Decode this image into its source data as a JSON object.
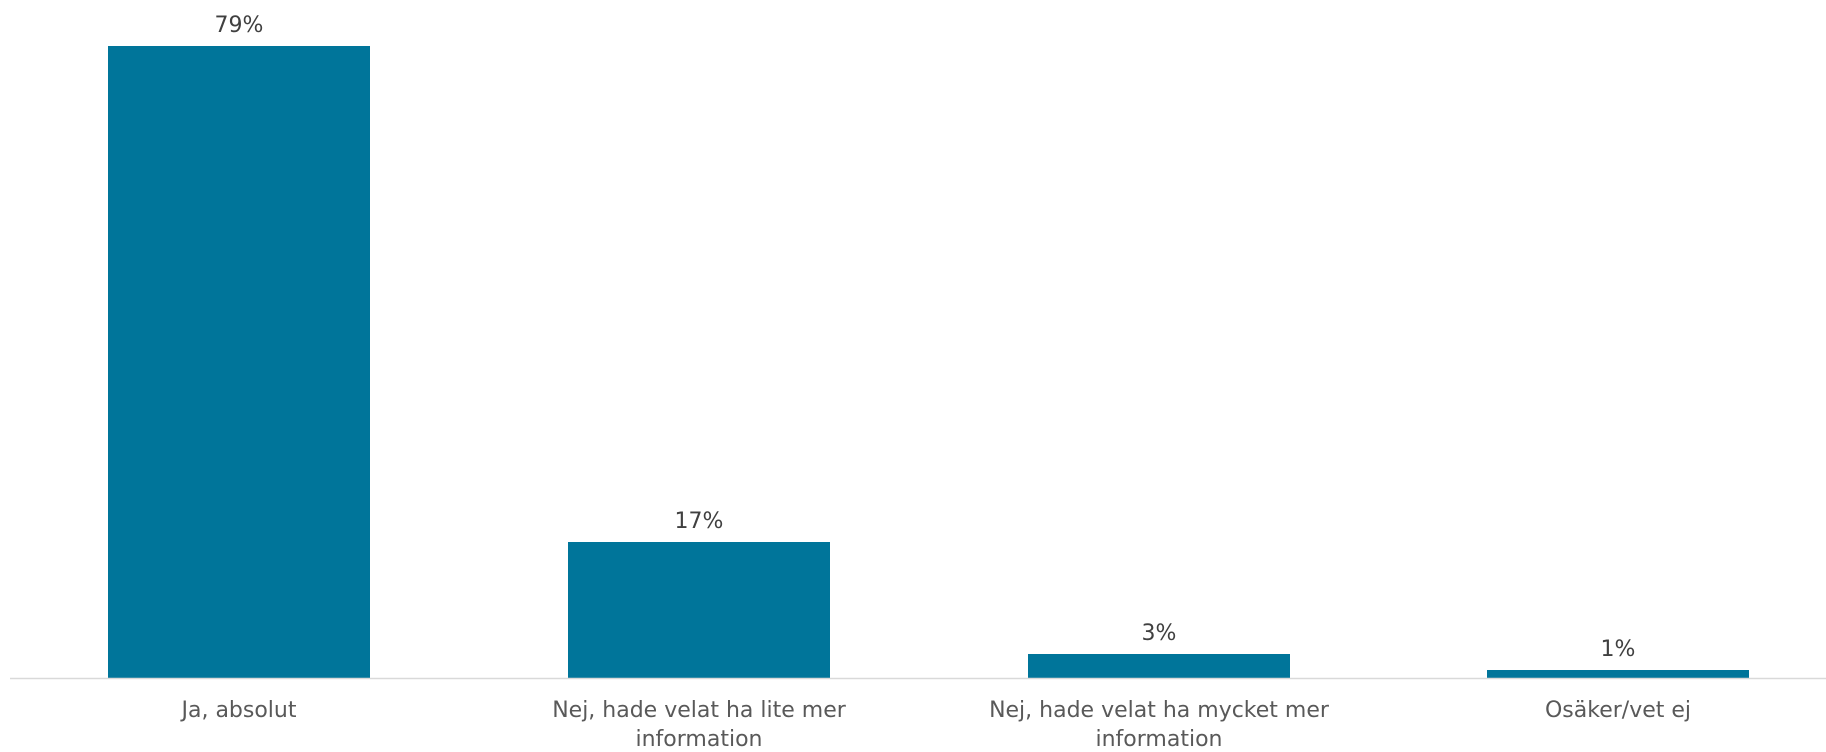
{
  "chart_data": {
    "type": "bar",
    "categories": [
      [
        "Ja, absolut"
      ],
      [
        "Nej, hade velat ha lite mer",
        "information"
      ],
      [
        "Nej, hade velat ha mycket mer",
        "information"
      ],
      [
        "Osäker/vet ej"
      ]
    ],
    "values": [
      79,
      17,
      3,
      1
    ],
    "value_labels": [
      "79%",
      "17%",
      "3%",
      "1%"
    ],
    "bar_color": "#00759A",
    "axis_color": "#D9D9D9",
    "title": "",
    "xlabel": "",
    "ylabel": "",
    "ylim": [
      0,
      79
    ]
  }
}
